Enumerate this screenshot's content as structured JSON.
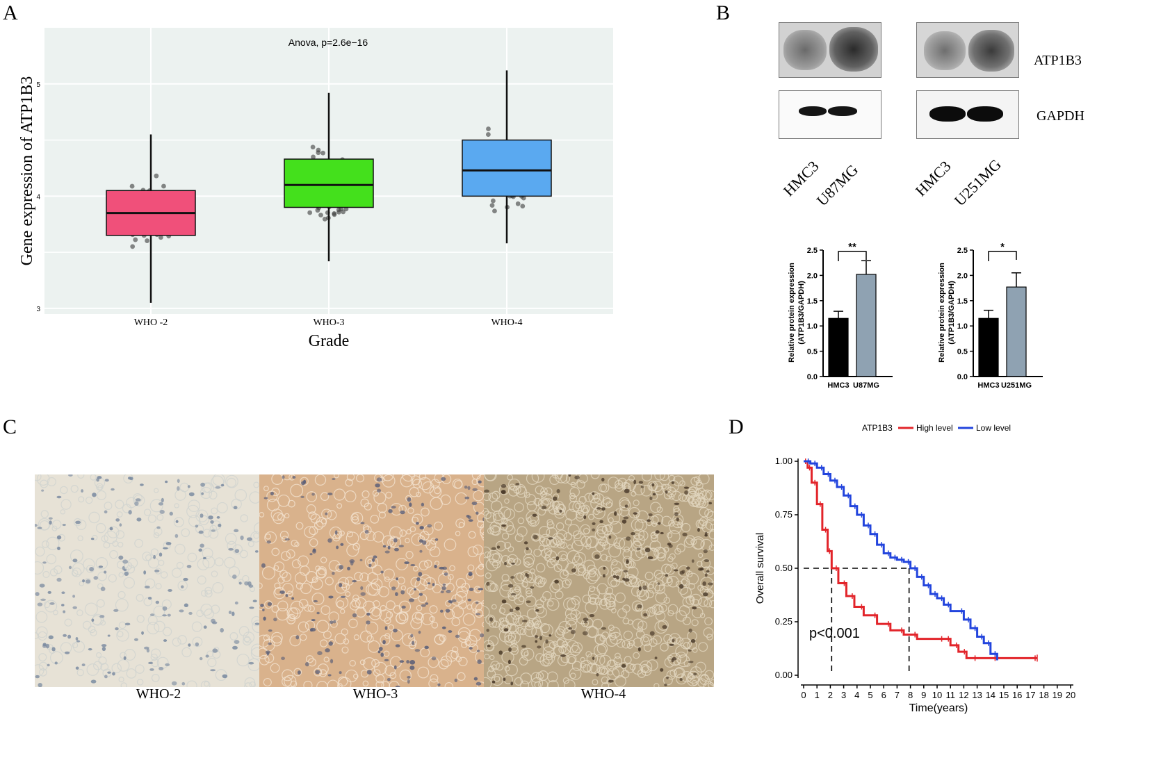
{
  "panels": {
    "A": "A",
    "B": "B",
    "C": "C",
    "D": "D"
  },
  "panel_a": {
    "chart_data": {
      "type": "box",
      "title": "Anova, p=2.6e−16",
      "xlabel": "Grade",
      "ylabel": "Gene expression of ATP1B3",
      "ylim": [
        2.95,
        5.5
      ],
      "yticks": [
        "3",
        "4",
        "5"
      ],
      "categories": [
        "WHO -2",
        "WHO-3",
        "WHO-4"
      ],
      "boxes": [
        {
          "name": "WHO -2",
          "color": "#f0507a",
          "min": 3.05,
          "q1": 3.65,
          "median": 3.85,
          "q3": 4.05,
          "max": 4.55
        },
        {
          "name": "WHO-3",
          "color": "#44e01c",
          "min": 3.42,
          "q1": 3.9,
          "median": 4.1,
          "q3": 4.33,
          "max": 4.92
        },
        {
          "name": "WHO-4",
          "color": "#5aa9f0",
          "min": 3.58,
          "q1": 4.0,
          "median": 4.23,
          "q3": 4.5,
          "max": 5.12
        }
      ]
    }
  },
  "panel_b": {
    "blot_labels": {
      "atp1b3": "ATP1B3",
      "gapdh": "GAPDH"
    },
    "lanes_left": [
      "HMC3",
      "U87MG"
    ],
    "lanes_right": [
      "HMC3",
      "U251MG"
    ],
    "charts": [
      {
        "chart_data": {
          "type": "bar",
          "categories": [
            "HMC3",
            "U87MG"
          ],
          "values": [
            1.15,
            2.02
          ],
          "errors": [
            0.14,
            0.27
          ],
          "colors": [
            "#000000",
            "#8fa2b2"
          ],
          "ylim": [
            0,
            2.5
          ],
          "yticks": [
            "0.0",
            "0.5",
            "1.0",
            "1.5",
            "2.0",
            "2.5"
          ],
          "ylabel": "Relative protein expression",
          "ylabel2": "(ATP1B3/GAPDH)",
          "significance": "**"
        }
      },
      {
        "chart_data": {
          "type": "bar",
          "categories": [
            "HMC3",
            "U251MG"
          ],
          "values": [
            1.15,
            1.77
          ],
          "errors": [
            0.16,
            0.28
          ],
          "colors": [
            "#000000",
            "#8fa2b2"
          ],
          "ylim": [
            0,
            2.5
          ],
          "yticks": [
            "0.0",
            "0.5",
            "1.0",
            "1.5",
            "2.0",
            "2.5"
          ],
          "ylabel": "Relative protein expression",
          "ylabel2": "(ATP1B3/GAPDH)",
          "significance": "*"
        }
      }
    ]
  },
  "panel_c": {
    "labels": [
      "WHO-2",
      "WHO-3",
      "WHO-4"
    ],
    "colors": [
      "#e7e2d6",
      "#d9b28c",
      "#b8a584"
    ]
  },
  "panel_d": {
    "chart_data": {
      "type": "line",
      "legend_title": "ATP1B3",
      "legend": [
        "High level",
        "Low level"
      ],
      "xlabel": "Time(years)",
      "ylabel": "Overall survival",
      "xlim": [
        0,
        20
      ],
      "ylim": [
        0,
        1
      ],
      "xticks": [
        "0",
        "1",
        "2",
        "3",
        "4",
        "5",
        "6",
        "7",
        "8",
        "9",
        "10",
        "11",
        "12",
        "13",
        "14",
        "15",
        "16",
        "17",
        "18",
        "19",
        "20"
      ],
      "yticks": [
        "0.00",
        "0.25",
        "0.50",
        "0.75",
        "1.00"
      ],
      "annotation": "p<0.001",
      "median_high": 2.1,
      "median_low": 7.9,
      "series": [
        {
          "name": "High level",
          "color": "#e2242a",
          "x": [
            0,
            0.3,
            0.6,
            1.0,
            1.4,
            1.8,
            2.1,
            2.6,
            3.2,
            3.8,
            4.5,
            5.5,
            6.5,
            7.5,
            8.5,
            10.5,
            11.0,
            11.6,
            12.2,
            13.0,
            14.5,
            17.5
          ],
          "y": [
            1.0,
            0.97,
            0.9,
            0.8,
            0.68,
            0.58,
            0.5,
            0.43,
            0.37,
            0.32,
            0.28,
            0.24,
            0.21,
            0.19,
            0.17,
            0.17,
            0.14,
            0.11,
            0.08,
            0.08,
            0.08,
            0.08
          ]
        },
        {
          "name": "Low level",
          "color": "#2244dd",
          "x": [
            0,
            0.5,
            1.0,
            1.5,
            2.0,
            2.5,
            3.0,
            3.5,
            4.0,
            4.5,
            5.0,
            5.5,
            6.0,
            6.5,
            7.0,
            7.5,
            8.0,
            8.5,
            9.0,
            9.5,
            10.0,
            10.5,
            11.0,
            12.0,
            12.5,
            13.0,
            13.5,
            14.0,
            14.5
          ],
          "y": [
            1.0,
            0.99,
            0.97,
            0.94,
            0.91,
            0.88,
            0.84,
            0.79,
            0.75,
            0.7,
            0.66,
            0.61,
            0.57,
            0.55,
            0.54,
            0.53,
            0.5,
            0.46,
            0.42,
            0.38,
            0.36,
            0.33,
            0.3,
            0.26,
            0.22,
            0.18,
            0.15,
            0.1,
            0.07
          ]
        }
      ]
    }
  }
}
